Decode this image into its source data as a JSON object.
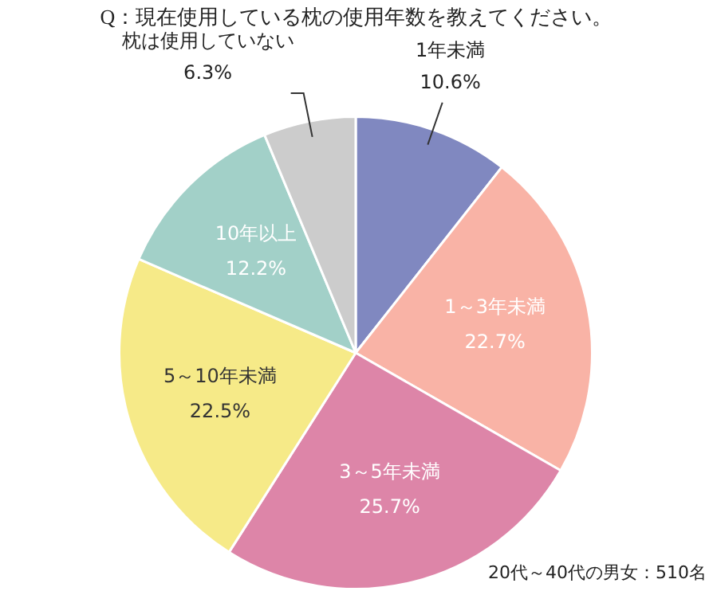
{
  "chart_data": {
    "type": "pie",
    "title": "Q：現在使用している枕の使用年数を教えてください。",
    "categories": [
      "1年未満",
      "1～3年未満",
      "3～5年未満",
      "5～10年未満",
      "10年以上",
      "枕は使用していない"
    ],
    "values": [
      10.6,
      22.7,
      25.7,
      22.5,
      12.2,
      6.3
    ],
    "colors": [
      "#8088c0",
      "#f9b3a6",
      "#dd85a8",
      "#f6ea88",
      "#a2d0c8",
      "#cccccc"
    ],
    "value_labels": [
      "10.6%",
      "22.7%",
      "25.7%",
      "22.5%",
      "12.2%",
      "6.3%"
    ],
    "legend": false,
    "annotations": [
      "20代～40代の男女：510名"
    ]
  }
}
